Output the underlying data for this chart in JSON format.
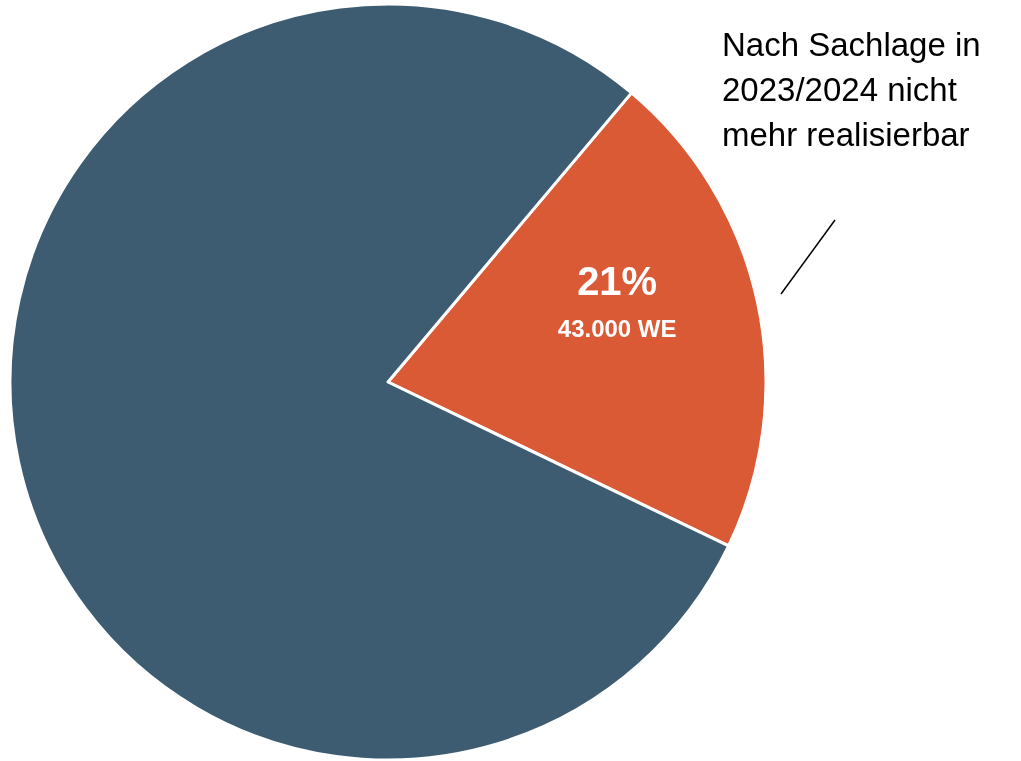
{
  "chart_data": {
    "type": "pie",
    "categories": [
      "Nach Sachlage in 2023/2024 nicht mehr realisierbar",
      null
    ],
    "values": [
      21,
      79
    ],
    "colors": [
      "#db5a36",
      "#3d5c71"
    ],
    "value_labels": [
      "21%",
      null
    ],
    "annotations": [
      "43.000 WE"
    ]
  }
}
